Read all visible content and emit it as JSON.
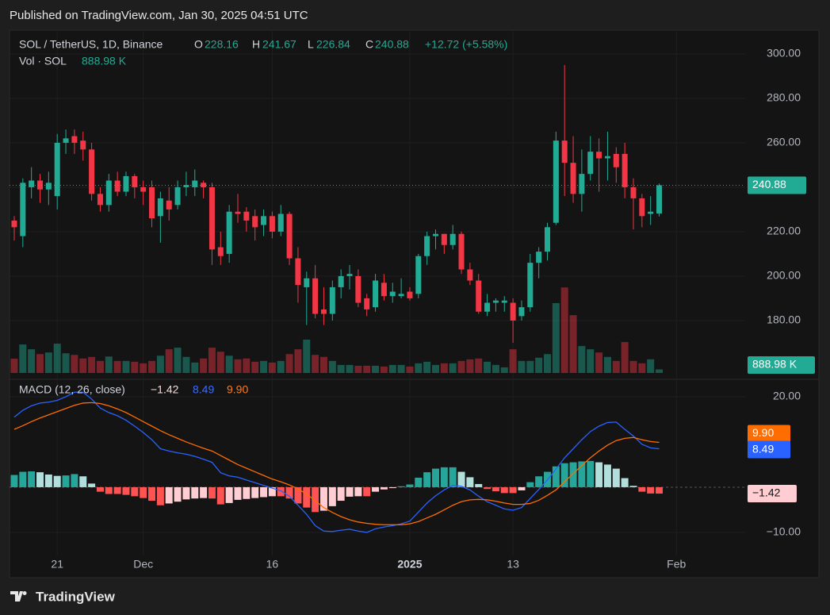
{
  "header": "Published on TradingView.com, Jan 30, 2025 04:51 UTC",
  "footer": "TradingView",
  "chart_data": [
    {
      "type": "candlestick",
      "title": "SOL / TetherUS, 1D, Binance",
      "ohlc_labels": [
        "O",
        "H",
        "L",
        "C"
      ],
      "change": "+12.72 (+5.58%)",
      "up_color": "#22ab94",
      "down_color": "#f23645",
      "grid": true,
      "open": [
        225,
        218,
        240,
        243,
        239,
        236,
        260,
        263,
        261,
        257,
        237,
        232,
        243,
        238,
        245,
        240,
        240,
        227,
        234,
        232,
        240,
        240,
        242,
        240,
        213,
        210,
        229,
        229,
        227,
        223,
        227,
        220,
        228,
        208,
        195,
        199,
        185,
        183,
        195,
        200,
        200,
        190,
        186,
        197,
        191,
        191,
        193,
        192,
        209,
        218,
        219,
        214,
        219,
        203,
        198,
        184,
        188,
        188,
        188,
        182,
        186,
        206,
        211,
        224,
        261,
        251,
        237,
        246,
        256,
        253,
        255,
        255,
        240,
        235,
        228,
        228.16
      ],
      "high": [
        227,
        244,
        249,
        246,
        247,
        264,
        266,
        266,
        265,
        260,
        240,
        246,
        247,
        247,
        246,
        243,
        243,
        238,
        240,
        243,
        247,
        248,
        243,
        242,
        220,
        232,
        237,
        231,
        230,
        230,
        229,
        232,
        229,
        213,
        202,
        205,
        195,
        198,
        203,
        205,
        203,
        192,
        201,
        201,
        197,
        199,
        195,
        210,
        220,
        221,
        219,
        223,
        220,
        206,
        201,
        192,
        190,
        191,
        190,
        189,
        210,
        213,
        224,
        265,
        295,
        263,
        257,
        263,
        262,
        265,
        258,
        260,
        244,
        237,
        236,
        241.67
      ],
      "low": [
        216,
        213,
        235,
        233,
        232,
        230,
        255,
        255,
        252,
        234,
        229,
        229,
        236,
        236,
        235,
        232,
        222,
        215,
        225,
        230,
        236,
        236,
        235,
        205,
        205,
        206,
        224,
        220,
        216,
        218,
        217,
        218,
        205,
        188,
        178,
        181,
        178,
        180,
        190,
        194,
        186,
        182,
        184,
        189,
        188,
        190,
        189,
        190,
        205,
        212,
        210,
        212,
        201,
        196,
        183,
        182,
        184,
        184,
        170,
        180,
        184,
        199,
        207,
        223,
        236,
        233,
        229,
        243,
        238,
        243,
        242,
        235,
        221,
        222,
        223,
        226.84
      ],
      "close": [
        222,
        242,
        243,
        239,
        242,
        260,
        262,
        260,
        257,
        237,
        232,
        243,
        238,
        245,
        240,
        238,
        226,
        235,
        230,
        240,
        241,
        243,
        240,
        212,
        209,
        229,
        228,
        225,
        222,
        227,
        220,
        228,
        208,
        196,
        199,
        183,
        183,
        195,
        200,
        201,
        188,
        185,
        198,
        191,
        193,
        192,
        190,
        209,
        218,
        219,
        214,
        219,
        203,
        198,
        184,
        188,
        189,
        189,
        180,
        186,
        206,
        211,
        222,
        261,
        251,
        237,
        246,
        256,
        253,
        254,
        249,
        240,
        235,
        227,
        229,
        240.88
      ],
      "xlim": [
        -0.55,
        85
      ],
      "xticks": [
        {
          "value": 5,
          "label": "21"
        },
        {
          "value": 15,
          "label": "Dec"
        },
        {
          "value": 30,
          "label": "16"
        },
        {
          "value": 46,
          "label": "2025"
        },
        {
          "value": 58,
          "label": "13"
        },
        {
          "value": 77,
          "label": "Feb"
        }
      ],
      "ylim": [
        156.4,
        310.7
      ],
      "yticks": [
        {
          "value": 180,
          "label": "180.00"
        },
        {
          "value": 200,
          "label": "200.00"
        },
        {
          "value": 220,
          "label": "220.00"
        },
        {
          "value": 240,
          "label": "240.00"
        },
        {
          "value": 260,
          "label": "260.00"
        },
        {
          "value": 280,
          "label": "280.00"
        },
        {
          "value": 300,
          "label": "300.00"
        }
      ]
    },
    {
      "type": "bar",
      "title": "Vol · SOL",
      "value_label": "888.98 K",
      "ylim": [
        0,
        21740
      ],
      "values": [
        3560,
        7100,
        5900,
        4700,
        5100,
        7300,
        4900,
        4500,
        3600,
        4000,
        3000,
        4100,
        3000,
        3000,
        2800,
        2400,
        3000,
        4300,
        5900,
        6300,
        4000,
        2600,
        3600,
        6300,
        5300,
        4300,
        3400,
        3600,
        2800,
        3000,
        2600,
        3000,
        4700,
        5900,
        8300,
        4500,
        4000,
        3000,
        2000,
        2000,
        1800,
        1800,
        1800,
        1600,
        2000,
        2000,
        1600,
        2400,
        2800,
        2000,
        2400,
        2400,
        3000,
        3400,
        3600,
        2800,
        2000,
        1400,
        5900,
        3000,
        3000,
        3800,
        4700,
        17400,
        21300,
        14400,
        6700,
        5900,
        5100,
        4000,
        3000,
        7700,
        3000,
        2400,
        3400,
        888.98
      ]
    },
    {
      "type": "macd",
      "title": "MACD (12, 26, close)",
      "ylim": [
        -15.1,
        23.5
      ],
      "yticks": [
        {
          "value": 20,
          "label": "20.00"
        },
        {
          "value": -10,
          "label": "−10.00"
        }
      ],
      "histogram": {
        "value_label": "−1.42",
        "colors": [
          "#26a69a",
          "#b2dfdb",
          "#ff5252",
          "#ffcdd2"
        ],
        "values": [
          2.7,
          3.4,
          3.5,
          3.3,
          2.8,
          2.5,
          2.6,
          2.9,
          2.4,
          0.8,
          -1,
          -1.5,
          -1.5,
          -1.7,
          -2,
          -2.4,
          -3,
          -4,
          -3.6,
          -3.2,
          -2.7,
          -2.5,
          -2.4,
          -2.5,
          -3.8,
          -3.5,
          -2.8,
          -2.6,
          -2.4,
          -2.2,
          -2,
          -2,
          -2.5,
          -3.6,
          -4.5,
          -5.5,
          -5.2,
          -4.2,
          -3,
          -2.1,
          -2,
          -2,
          -1,
          -0.5,
          -0.2,
          0.2,
          0.6,
          2.1,
          3.3,
          4.1,
          4.4,
          4.4,
          3.4,
          2.2,
          0.7,
          -0.4,
          -0.9,
          -1.3,
          -1.3,
          -0.7,
          1.1,
          2.4,
          3.4,
          4.6,
          5.3,
          5.5,
          5.7,
          5.8,
          5.5,
          5,
          4.1,
          2,
          0.3,
          -1,
          -1.4,
          -1.42
        ]
      },
      "series": [
        {
          "color": "#2962ff",
          "values": [
            15.5,
            17,
            18,
            18.6,
            18.8,
            19.2,
            20,
            21,
            21,
            19.5,
            17.5,
            16.5,
            15.8,
            14.8,
            13.5,
            12.1,
            10.5,
            8.5,
            8,
            7.6,
            7.3,
            6.8,
            6.2,
            5.5,
            3.2,
            2.5,
            2.2,
            1.6,
            1,
            0.4,
            -0.2,
            -0.8,
            -2,
            -4,
            -6,
            -8.5,
            -9.7,
            -9.8,
            -9.5,
            -9.3,
            -9.7,
            -10,
            -9.2,
            -8.8,
            -8.5,
            -8.1,
            -7.5,
            -5.5,
            -3.5,
            -1.9,
            -0.6,
            0.4,
            0.2,
            -0.6,
            -2,
            -3.2,
            -4,
            -4.8,
            -5.1,
            -4.5,
            -2.5,
            -0.5,
            1.6,
            4,
            6.5,
            8.5,
            10.5,
            12.3,
            13.5,
            14.3,
            14.4,
            12.8,
            11.3,
            9.5,
            8.7,
            8.49
          ]
        },
        {
          "color": "#ff6d00",
          "value_label": "9.90",
          "values": [
            12.8,
            13.6,
            14.5,
            15.3,
            16,
            16.7,
            17.4,
            18.1,
            18.6,
            18.7,
            18.5,
            18,
            17.3,
            16.5,
            15.5,
            14.5,
            13.5,
            12.5,
            11.6,
            10.8,
            10,
            9.3,
            8.6,
            8,
            7,
            6,
            5,
            4.2,
            3.4,
            2.6,
            1.8,
            1.2,
            0.5,
            -0.4,
            -1.5,
            -3,
            -4.5,
            -5.6,
            -6.5,
            -7.2,
            -7.7,
            -8,
            -8.2,
            -8.3,
            -8.3,
            -8.3,
            -8.1,
            -7.6,
            -6.8,
            -6,
            -5,
            -4,
            -3.2,
            -2.8,
            -2.7,
            -2.8,
            -3.1,
            -3.5,
            -3.8,
            -3.8,
            -3.6,
            -2.9,
            -1.8,
            -0.6,
            1.2,
            3,
            4.8,
            6.5,
            8,
            9.3,
            10.3,
            10.8,
            11,
            10.5,
            10.1,
            9.9
          ]
        }
      ]
    }
  ]
}
